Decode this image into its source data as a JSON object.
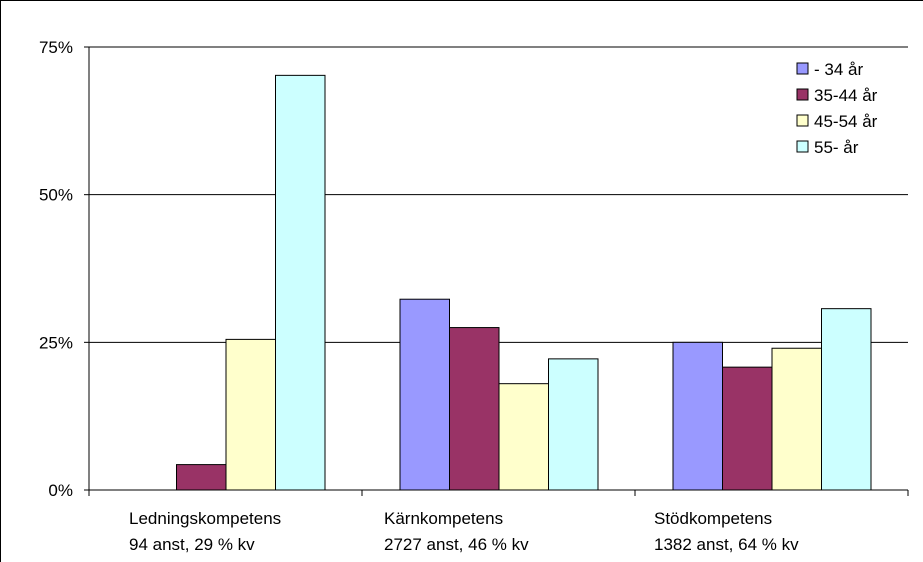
{
  "chart_data": {
    "type": "bar",
    "categories": [
      [
        "Ledningskompetens",
        "94 anst, 29 % kv"
      ],
      [
        "Kärnkompetens",
        "2727 anst, 46 % kv"
      ],
      [
        "Stödkompetens",
        "1382 anst, 64 % kv"
      ]
    ],
    "series": [
      {
        "name": "- 34 år",
        "color": "#9999ff",
        "values": [
          0,
          32.3,
          25.0
        ]
      },
      {
        "name": "35-44 år",
        "color": "#993366",
        "values": [
          4.3,
          27.5,
          20.8
        ]
      },
      {
        "name": "45-54 år",
        "color": "#ffffcc",
        "values": [
          25.5,
          18.0,
          24.0
        ]
      },
      {
        "name": "55- år",
        "color": "#ccffff",
        "values": [
          70.2,
          22.2,
          30.7
        ]
      }
    ],
    "y_ticks": [
      "0%",
      "25%",
      "50%",
      "75%"
    ],
    "y_tick_values": [
      0,
      25,
      50,
      75
    ],
    "ylim": [
      0,
      75
    ],
    "grid": true,
    "legend_position": "top-right",
    "title": "",
    "xlabel": "",
    "ylabel": ""
  }
}
